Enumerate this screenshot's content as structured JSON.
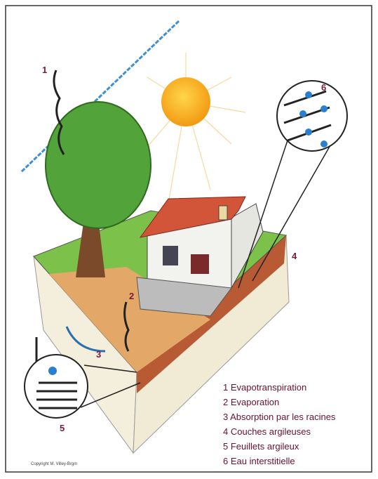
{
  "callouts": [
    "1",
    "2",
    "3",
    "4",
    "5",
    "6"
  ],
  "legend": [
    "1 Evapotranspiration",
    "2 Evaporation",
    "3 Absorption par les racines",
    "4 Couches argileuses",
    "5 Feuillets argileux",
    "6 Eau interstitielle"
  ],
  "copyright": "Copyright M. Villey-Brgm"
}
